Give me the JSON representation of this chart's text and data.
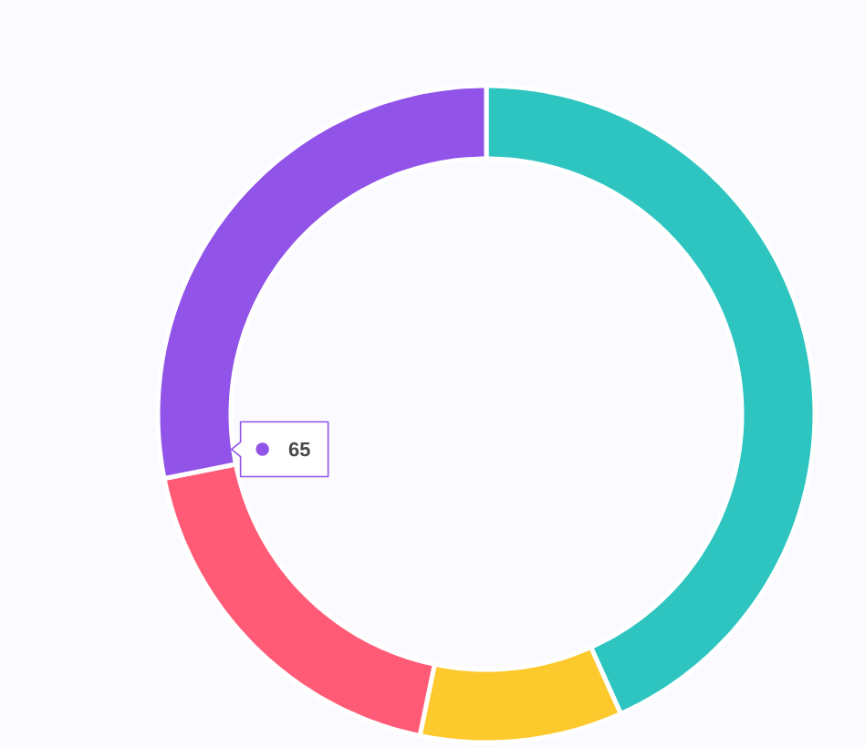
{
  "chart_data": {
    "type": "donut",
    "categories": [
      null,
      null,
      null,
      null
    ],
    "values": [
      100,
      23,
      43,
      65
    ],
    "colors": [
      "#2ec5c1",
      "#fdca2e",
      "#ff5b77",
      "#9153e8"
    ],
    "value_labels": [
      null,
      null,
      null,
      "65"
    ]
  }
}
